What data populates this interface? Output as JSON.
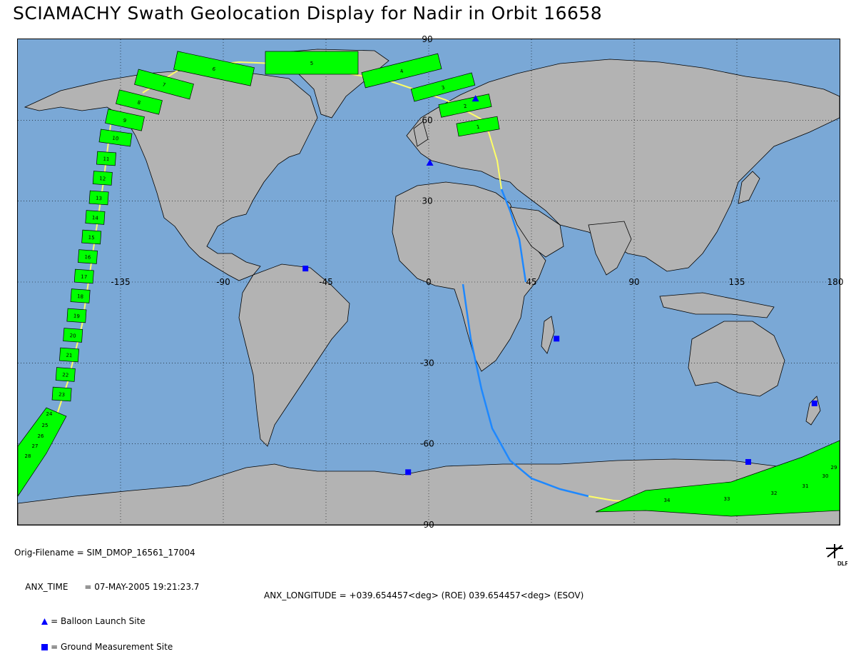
{
  "title": "SCIAMACHY Swath Geolocation Display for Nadir in Orbit 16658",
  "map": {
    "lat_labels": [
      "90",
      "60",
      "30",
      "-30",
      "-60",
      "-90"
    ],
    "lon_labels": [
      "-135",
      "-90",
      "-45",
      "0",
      "45",
      "90",
      "135",
      "180"
    ],
    "colors": {
      "ocean": "#7aa8d6",
      "land": "#b3b3b3",
      "swath": "#00ff00",
      "track_day": "#ffff66",
      "track_night": "#1e88ff",
      "site": "#0000ff"
    },
    "swath_labels": [
      "1",
      "2",
      "3",
      "4",
      "5",
      "6",
      "7",
      "8",
      "9",
      "10",
      "11",
      "12",
      "13",
      "14",
      "15",
      "16",
      "17",
      "18",
      "19",
      "20",
      "21",
      "22",
      "23",
      "24",
      "25",
      "26",
      "27",
      "28",
      "29",
      "30",
      "31",
      "32",
      "33",
      "34"
    ],
    "balloon_sites": [
      {
        "lon": 0.5,
        "lat": 44.2
      },
      {
        "lon": 20.5,
        "lat": 68.0
      }
    ],
    "ground_sites": [
      {
        "lon": -54.0,
        "lat": 5.0
      },
      {
        "lon": 56.0,
        "lat": -21.0
      },
      {
        "lon": 169.0,
        "lat": -45.0
      },
      {
        "lon": -9.0,
        "lat": -70.5
      },
      {
        "lon": 140.0,
        "lat": -66.7
      }
    ]
  },
  "footer": {
    "orig_filename": "Orig-Filename = SIM_DMOP_16561_17004",
    "anx_time": "ANX_TIME      = 07-MAY-2005 19:21:23.7",
    "anx_longitude": "ANX_LONGITUDE = +039.654457<deg> (ROE) 039.654457<deg> (ESOV)",
    "legend_balloon": "= Balloon Launch Site",
    "legend_ground": "= Ground Measurement Site"
  },
  "logo_text": "DLR"
}
